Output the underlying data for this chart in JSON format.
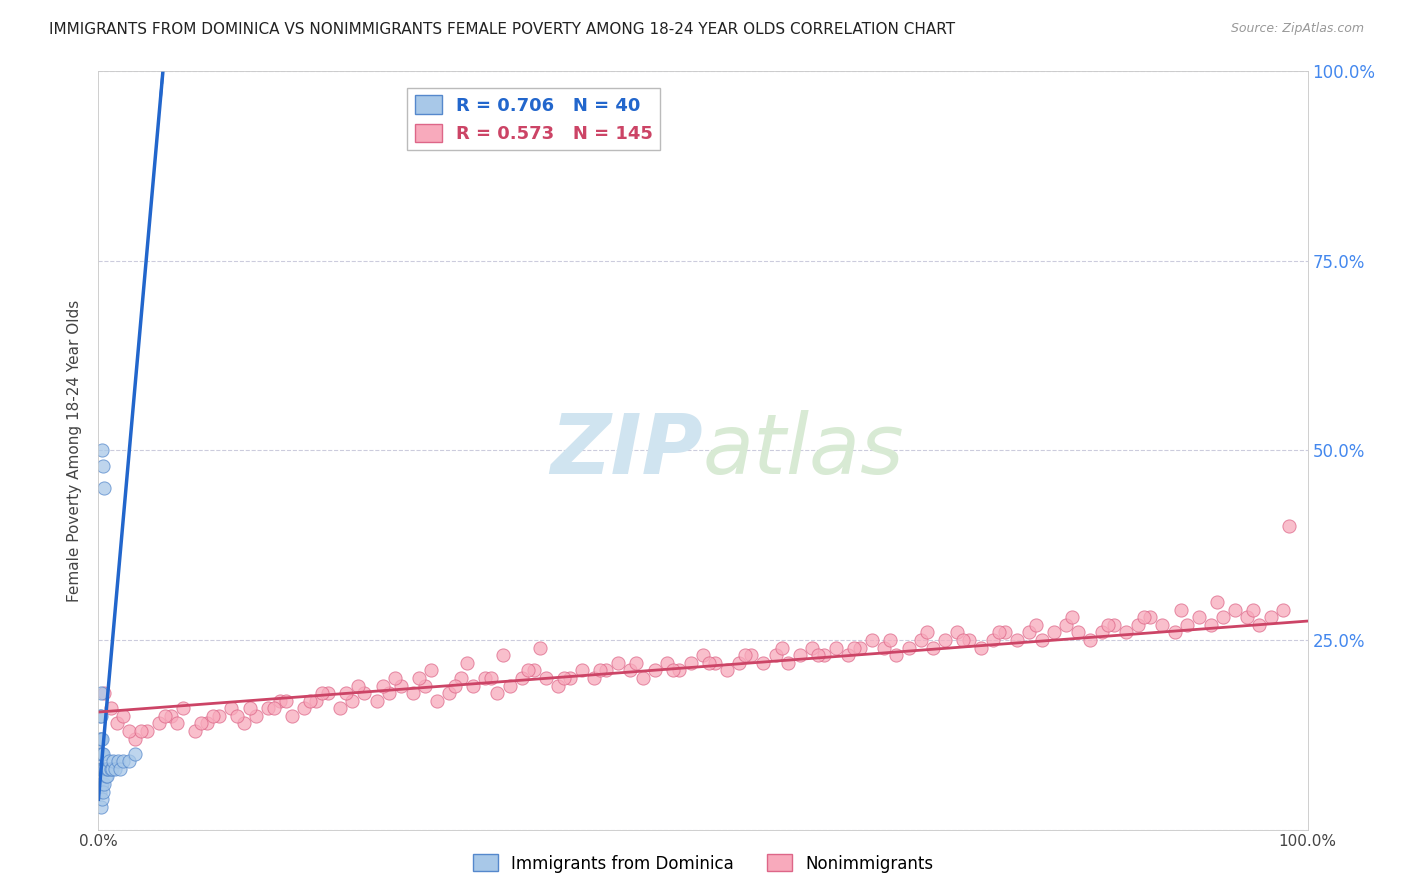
{
  "title": "IMMIGRANTS FROM DOMINICA VS NONIMMIGRANTS FEMALE POVERTY AMONG 18-24 YEAR OLDS CORRELATION CHART",
  "source": "Source: ZipAtlas.com",
  "ylabel": "Female Poverty Among 18-24 Year Olds",
  "blue_R": 0.706,
  "blue_N": 40,
  "pink_R": 0.573,
  "pink_N": 145,
  "blue_color": "#A8C8E8",
  "blue_edge_color": "#5588CC",
  "blue_line_color": "#2266CC",
  "pink_color": "#F8AABC",
  "pink_edge_color": "#DD6688",
  "pink_line_color": "#CC4466",
  "watermark_zip": "ZIP",
  "watermark_atlas": "atlas",
  "watermark_color": "#D0E4F0",
  "bg_color": "#FFFFFF",
  "grid_color": "#CCCCDD",
  "right_axis_color": "#4488EE",
  "blue_scatter_x": [
    0.001,
    0.001,
    0.001,
    0.001,
    0.001,
    0.002,
    0.002,
    0.002,
    0.002,
    0.002,
    0.002,
    0.002,
    0.003,
    0.003,
    0.003,
    0.003,
    0.003,
    0.003,
    0.004,
    0.004,
    0.004,
    0.004,
    0.005,
    0.005,
    0.005,
    0.006,
    0.006,
    0.007,
    0.007,
    0.008,
    0.009,
    0.01,
    0.011,
    0.012,
    0.014,
    0.016,
    0.018,
    0.02,
    0.025,
    0.03
  ],
  "blue_scatter_y": [
    0.05,
    0.08,
    0.1,
    0.12,
    0.15,
    0.03,
    0.06,
    0.08,
    0.1,
    0.12,
    0.15,
    0.18,
    0.04,
    0.06,
    0.08,
    0.1,
    0.12,
    0.5,
    0.05,
    0.08,
    0.1,
    0.48,
    0.06,
    0.08,
    0.45,
    0.07,
    0.08,
    0.07,
    0.08,
    0.08,
    0.09,
    0.08,
    0.08,
    0.09,
    0.08,
    0.09,
    0.08,
    0.09,
    0.09,
    0.1
  ],
  "pink_scatter_x": [
    0.005,
    0.01,
    0.015,
    0.02,
    0.03,
    0.04,
    0.05,
    0.06,
    0.07,
    0.08,
    0.09,
    0.1,
    0.11,
    0.12,
    0.13,
    0.14,
    0.15,
    0.16,
    0.17,
    0.18,
    0.19,
    0.2,
    0.21,
    0.22,
    0.23,
    0.24,
    0.25,
    0.26,
    0.27,
    0.28,
    0.29,
    0.3,
    0.31,
    0.32,
    0.33,
    0.34,
    0.35,
    0.36,
    0.37,
    0.38,
    0.39,
    0.4,
    0.41,
    0.42,
    0.43,
    0.44,
    0.45,
    0.46,
    0.47,
    0.48,
    0.49,
    0.5,
    0.51,
    0.52,
    0.53,
    0.54,
    0.55,
    0.56,
    0.57,
    0.58,
    0.59,
    0.6,
    0.61,
    0.62,
    0.63,
    0.64,
    0.65,
    0.66,
    0.67,
    0.68,
    0.69,
    0.7,
    0.71,
    0.72,
    0.73,
    0.74,
    0.75,
    0.76,
    0.77,
    0.78,
    0.79,
    0.8,
    0.81,
    0.82,
    0.83,
    0.84,
    0.85,
    0.86,
    0.87,
    0.88,
    0.89,
    0.9,
    0.91,
    0.92,
    0.93,
    0.94,
    0.95,
    0.96,
    0.97,
    0.98,
    0.025,
    0.055,
    0.085,
    0.115,
    0.145,
    0.175,
    0.205,
    0.235,
    0.265,
    0.295,
    0.325,
    0.355,
    0.385,
    0.415,
    0.445,
    0.475,
    0.505,
    0.535,
    0.565,
    0.595,
    0.625,
    0.655,
    0.685,
    0.715,
    0.745,
    0.775,
    0.805,
    0.835,
    0.865,
    0.895,
    0.925,
    0.955,
    0.985,
    0.035,
    0.065,
    0.095,
    0.125,
    0.155,
    0.185,
    0.215,
    0.245,
    0.275,
    0.305,
    0.335,
    0.365
  ],
  "pink_scatter_y": [
    0.18,
    0.16,
    0.14,
    0.15,
    0.12,
    0.13,
    0.14,
    0.15,
    0.16,
    0.13,
    0.14,
    0.15,
    0.16,
    0.14,
    0.15,
    0.16,
    0.17,
    0.15,
    0.16,
    0.17,
    0.18,
    0.16,
    0.17,
    0.18,
    0.17,
    0.18,
    0.19,
    0.18,
    0.19,
    0.17,
    0.18,
    0.2,
    0.19,
    0.2,
    0.18,
    0.19,
    0.2,
    0.21,
    0.2,
    0.19,
    0.2,
    0.21,
    0.2,
    0.21,
    0.22,
    0.21,
    0.2,
    0.21,
    0.22,
    0.21,
    0.22,
    0.23,
    0.22,
    0.21,
    0.22,
    0.23,
    0.22,
    0.23,
    0.22,
    0.23,
    0.24,
    0.23,
    0.24,
    0.23,
    0.24,
    0.25,
    0.24,
    0.23,
    0.24,
    0.25,
    0.24,
    0.25,
    0.26,
    0.25,
    0.24,
    0.25,
    0.26,
    0.25,
    0.26,
    0.25,
    0.26,
    0.27,
    0.26,
    0.25,
    0.26,
    0.27,
    0.26,
    0.27,
    0.28,
    0.27,
    0.26,
    0.27,
    0.28,
    0.27,
    0.28,
    0.29,
    0.28,
    0.27,
    0.28,
    0.29,
    0.13,
    0.15,
    0.14,
    0.15,
    0.16,
    0.17,
    0.18,
    0.19,
    0.2,
    0.19,
    0.2,
    0.21,
    0.2,
    0.21,
    0.22,
    0.21,
    0.22,
    0.23,
    0.24,
    0.23,
    0.24,
    0.25,
    0.26,
    0.25,
    0.26,
    0.27,
    0.28,
    0.27,
    0.28,
    0.29,
    0.3,
    0.29,
    0.4,
    0.13,
    0.14,
    0.15,
    0.16,
    0.17,
    0.18,
    0.19,
    0.2,
    0.21,
    0.22,
    0.23,
    0.24
  ],
  "blue_trend_x0": 0.0,
  "blue_trend_y0": 0.04,
  "blue_trend_slope": 18.0,
  "pink_trend_x0": 0.0,
  "pink_trend_y0": 0.155,
  "pink_trend_slope": 0.12,
  "xlim": [
    0.0,
    1.0
  ],
  "ylim": [
    0.0,
    1.0
  ],
  "yticks": [
    0.0,
    0.25,
    0.5,
    0.75,
    1.0
  ],
  "left_ytick_labels": [
    "",
    "",
    "",
    "",
    ""
  ],
  "right_ytick_labels": [
    "",
    "25.0%",
    "50.0%",
    "75.0%",
    "100.0%"
  ],
  "xticks": [
    0.0,
    0.25,
    0.5,
    0.75,
    1.0
  ],
  "xtick_labels": [
    "0.0%",
    "",
    "",
    "",
    "100.0%"
  ]
}
